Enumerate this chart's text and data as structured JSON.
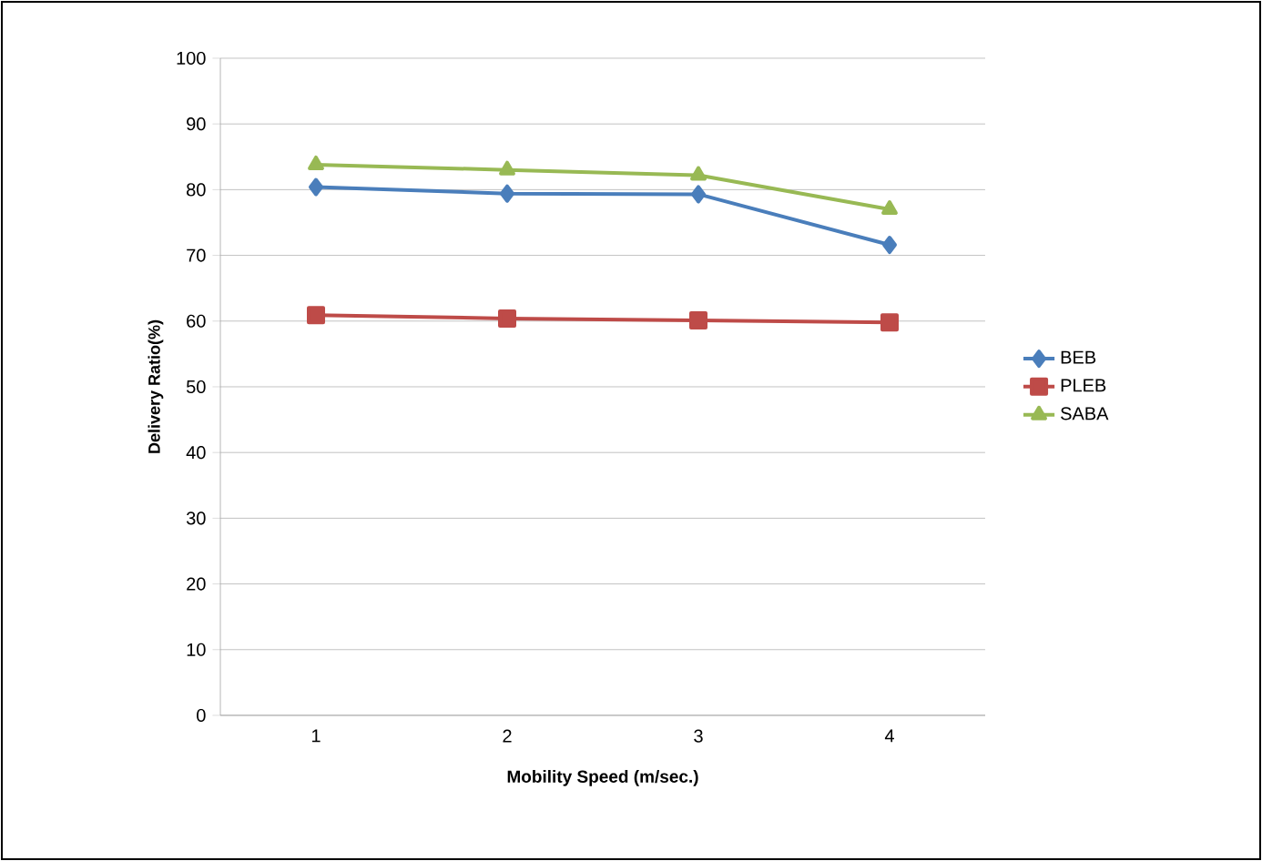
{
  "chart_data": {
    "type": "line",
    "xlabel": "Mobility Speed (m/sec.)",
    "ylabel": "Delivery Ratio(%)",
    "categories": [
      "1",
      "2",
      "3",
      "4"
    ],
    "series": [
      {
        "name": "BEB",
        "color": "#4a7ebb",
        "marker": "diamond",
        "values": [
          80.4,
          79.4,
          79.3,
          71.6
        ]
      },
      {
        "name": "PLEB",
        "color": "#be4b48",
        "marker": "square",
        "values": [
          60.9,
          60.4,
          60.1,
          59.8
        ]
      },
      {
        "name": "SABA",
        "color": "#98b954",
        "marker": "triangle",
        "values": [
          83.8,
          83.0,
          82.2,
          77.0
        ]
      }
    ],
    "ylim": [
      0,
      100
    ],
    "yticks": [
      0,
      10,
      20,
      30,
      40,
      50,
      60,
      70,
      80,
      90,
      100
    ],
    "grid": "y",
    "legend": "right",
    "line_style": "solid"
  }
}
